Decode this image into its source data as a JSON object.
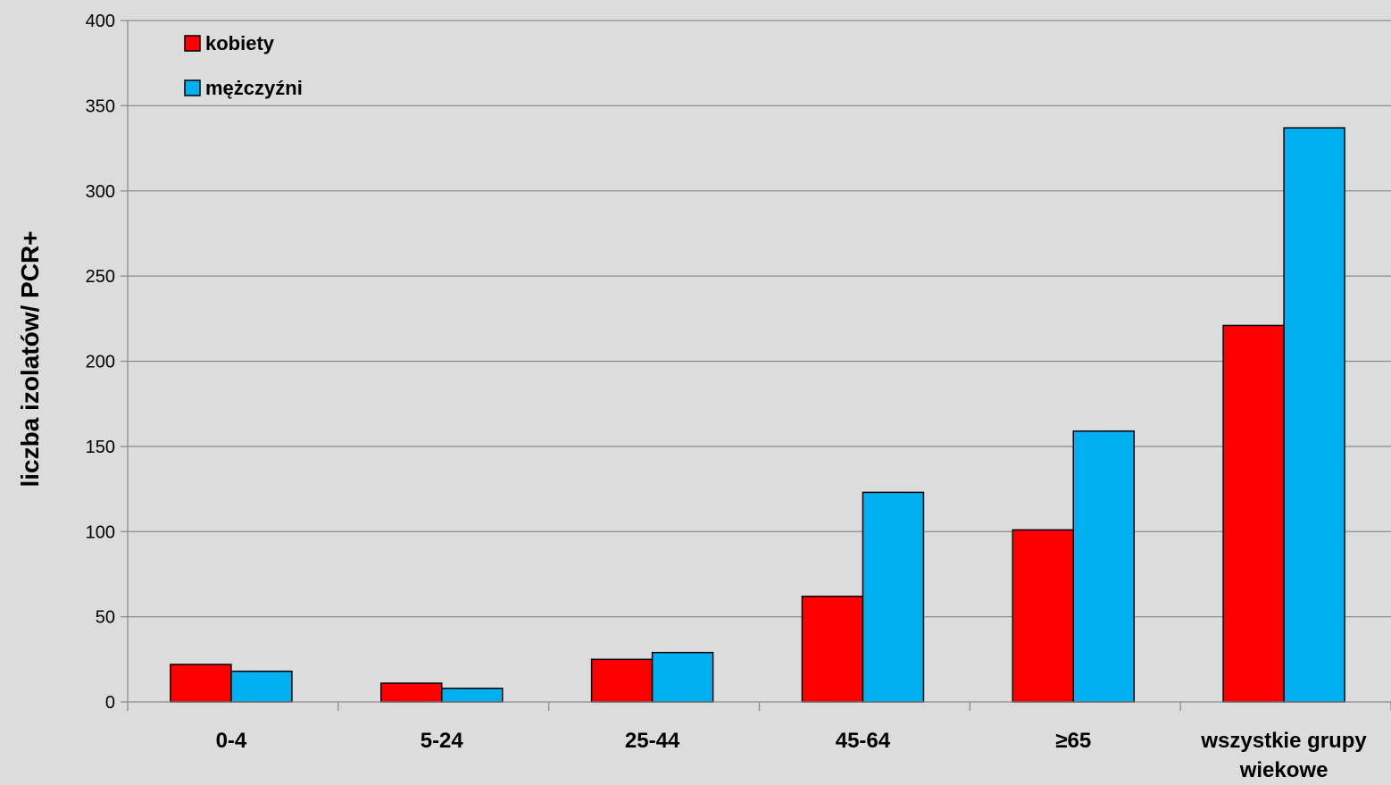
{
  "chart_data": {
    "type": "bar",
    "title": "",
    "xlabel": "",
    "ylabel": "liczba izolatów/ PCR+",
    "ylim": [
      0,
      400
    ],
    "yticks": [
      0,
      50,
      100,
      150,
      200,
      250,
      300,
      350,
      400
    ],
    "grid": true,
    "legend_position": "top-left",
    "categories": [
      "0-4",
      "5-24",
      "25-44",
      "45-64",
      "≥65",
      "wszystkie grupy wiekowe"
    ],
    "series": [
      {
        "name": "kobiety",
        "color": "#ff0000",
        "values": [
          22,
          11,
          25,
          62,
          101,
          221
        ]
      },
      {
        "name": "mężczyźni",
        "color": "#00b0f0",
        "values": [
          18,
          8,
          29,
          123,
          159,
          337
        ]
      }
    ]
  }
}
